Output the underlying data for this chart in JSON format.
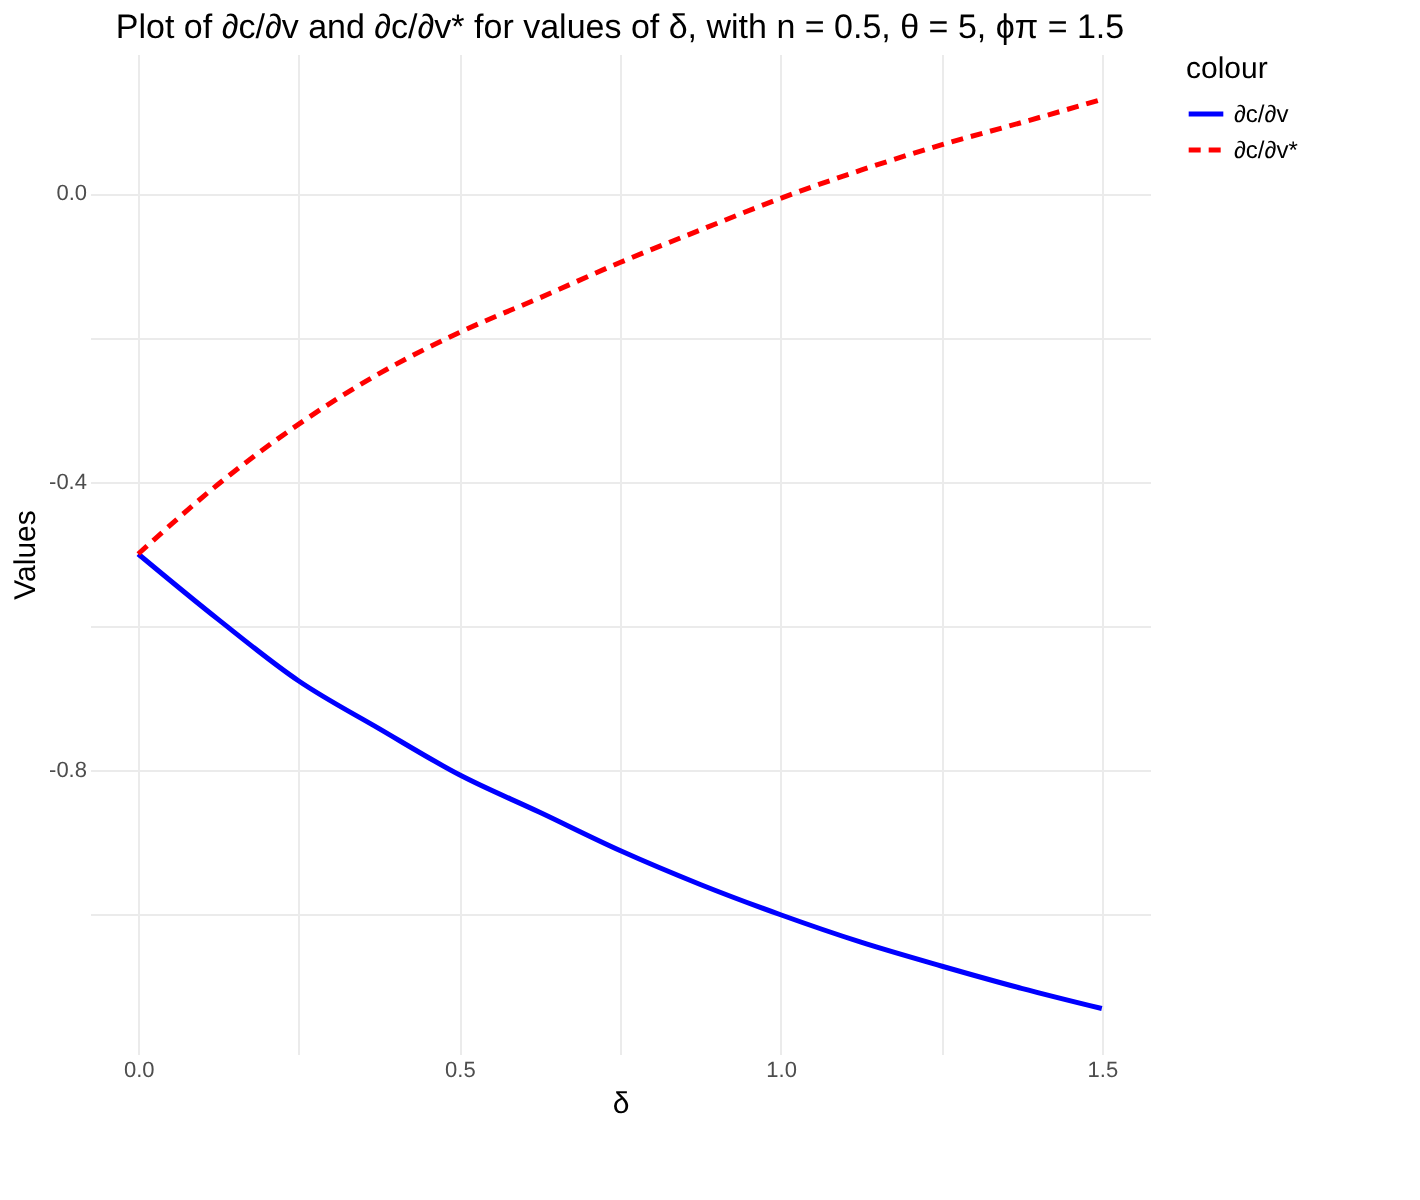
{
  "chart_data": {
    "type": "line",
    "title": "Plot of ∂c/∂v and ∂c/∂v* for values of δ, with n = 0.5, θ = 5, ϕπ = 1.5",
    "xlabel": "δ",
    "ylabel": "Values",
    "legend_title": "colour",
    "legend": "right",
    "grid": true,
    "marker": "none",
    "x": [
      0,
      0.125,
      0.25,
      0.375,
      0.5,
      0.625,
      0.75,
      0.875,
      1.0,
      1.125,
      1.25,
      1.375,
      1.5
    ],
    "series": [
      {
        "name": "∂c/∂v",
        "color": "#0000ff",
        "line_style": "solid",
        "values": [
          -0.5,
          -0.591,
          -0.676,
          -0.742,
          -0.806,
          -0.858,
          -0.911,
          -0.958,
          -1.0,
          -1.038,
          -1.071,
          -1.102,
          -1.13
        ]
      },
      {
        "name": "∂c/∂v*",
        "color": "#ff0000",
        "line_style": "dashed",
        "values": [
          -0.5,
          -0.403,
          -0.32,
          -0.25,
          -0.193,
          -0.145,
          -0.096,
          -0.051,
          -0.007,
          0.032,
          0.067,
          0.098,
          0.13
        ]
      }
    ],
    "xlim": [
      -0.075,
      1.575
    ],
    "ylim": [
      -1.193,
      0.193
    ],
    "xticks": [
      {
        "value": 0,
        "label": "0.0"
      },
      {
        "value": 0.25,
        "label": null
      },
      {
        "value": 0.5,
        "label": "0.5"
      },
      {
        "value": 0.75,
        "label": null
      },
      {
        "value": 1,
        "label": "1.0"
      },
      {
        "value": 1.25,
        "label": null
      },
      {
        "value": 1.5,
        "label": "1.5"
      }
    ],
    "yticks": [
      {
        "value": -1.0,
        "label": null
      },
      {
        "value": -0.8,
        "label": "-0.8"
      },
      {
        "value": -0.6,
        "label": null
      },
      {
        "value": -0.4,
        "label": "-0.4"
      },
      {
        "value": -0.2,
        "label": null
      },
      {
        "value": 0,
        "label": "0.0"
      }
    ]
  }
}
